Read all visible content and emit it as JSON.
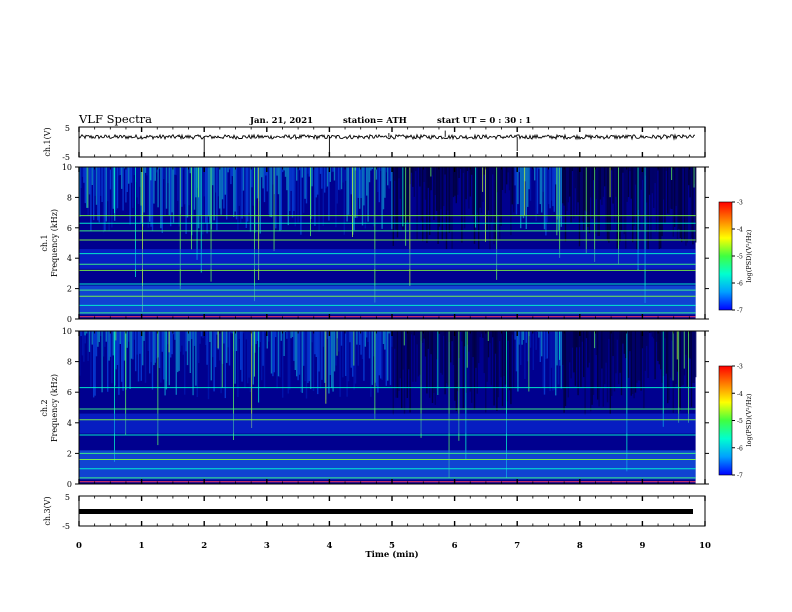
{
  "header": {
    "title": "VLF Spectra",
    "date": "Jan. 21, 2021",
    "station": "station= ATH",
    "start_ut": "start  UT =   0 : 30 : 1"
  },
  "colors": {
    "spectrogram_bg": "#00008f",
    "line_color": "#000000",
    "colormap": [
      "#000070",
      "#0000ff",
      "#00a0ff",
      "#00ffd0",
      "#40ff40",
      "#ffff00",
      "#ff8000",
      "#ff0000",
      "#ffffff"
    ]
  },
  "chart_data": [
    {
      "type": "line",
      "panel": "ch1-waveform",
      "ylabel": "ch.1(V)",
      "ylim": [
        -5,
        5
      ],
      "yticks": [
        "5",
        "-5"
      ],
      "xlim": [
        0,
        10
      ],
      "baseline_value": 0,
      "description_values": {
        "mean": 0,
        "amplitude": 0.7
      }
    },
    {
      "type": "heatmap",
      "panel": "ch1-spectrogram",
      "ylabel_top": "ch.1",
      "ylabel": "Frequency (kHz)",
      "ylim": [
        0,
        10
      ],
      "yticks": [
        "0",
        "2",
        "4",
        "6",
        "8",
        "10"
      ],
      "xlim": [
        0,
        10
      ],
      "colorbar": {
        "label": "log(PSD)(V²/Hz)",
        "range": [
          -7,
          -3
        ],
        "ticks": [
          "-3",
          "-4",
          "-5",
          "-6",
          "-7"
        ]
      },
      "quiet_segments_min": [
        [
          5.0,
          6.95
        ],
        [
          7.7,
          9.85
        ]
      ],
      "horizontal_lines_khz": [
        0.4,
        0.9,
        1.5,
        1.9,
        2.3,
        3.2,
        3.6,
        4.3,
        5.2,
        5.8,
        6.3,
        6.8
      ]
    },
    {
      "type": "heatmap",
      "panel": "ch2-spectrogram",
      "ylabel_top": "ch.2",
      "ylabel": "Frequency (kHz)",
      "ylim": [
        0,
        10
      ],
      "yticks": [
        "0",
        "2",
        "4",
        "6",
        "8",
        "10"
      ],
      "xlim": [
        0,
        10
      ],
      "colorbar": {
        "label": "log(PSD)(V²/Hz)",
        "range": [
          -7,
          -3
        ],
        "ticks": [
          "-3",
          "-4",
          "-5",
          "-6",
          "-7"
        ]
      },
      "quiet_segments_min": [
        [
          5.0,
          6.95
        ],
        [
          7.7,
          9.85
        ]
      ],
      "horizontal_lines_khz": [
        0.4,
        1.0,
        1.6,
        2.0,
        3.2,
        4.2,
        4.9,
        6.3
      ]
    },
    {
      "type": "line",
      "panel": "ch3-waveform",
      "ylabel": "ch.3(V)",
      "ylim": [
        -5,
        5
      ],
      "yticks": [
        "5",
        "-5"
      ],
      "xlim": [
        0,
        10
      ],
      "baseline_value": 0
    }
  ],
  "xaxis": {
    "label": "Time (min)",
    "ticks": [
      "0",
      "1",
      "2",
      "3",
      "4",
      "5",
      "6",
      "7",
      "8",
      "9",
      "10"
    ],
    "data_end_min": 9.85
  }
}
